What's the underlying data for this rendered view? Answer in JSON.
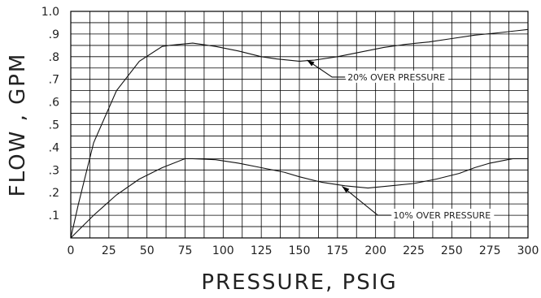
{
  "chart_data": {
    "type": "line",
    "xlabel": "PRESSURE, PSIG",
    "ylabel": "FLOW , GPM",
    "xlim": [
      0,
      300
    ],
    "ylim": [
      0,
      1.0
    ],
    "x_ticks": [
      0,
      25,
      50,
      75,
      100,
      125,
      150,
      175,
      200,
      225,
      250,
      275,
      300
    ],
    "x_tick_labels": [
      "0",
      "25",
      "50",
      "75",
      "100",
      "125",
      "150",
      "175",
      "200",
      "225",
      "250",
      "275",
      "300"
    ],
    "y_ticks": [
      0.1,
      0.2,
      0.3,
      0.4,
      0.5,
      0.6,
      0.7,
      0.8,
      0.9,
      1.0
    ],
    "y_tick_labels": [
      ".1",
      ".2",
      ".3",
      ".4",
      ".5",
      ".6",
      ".7",
      ".8",
      ".9",
      "1.0"
    ],
    "minor_x_step": 12.5,
    "minor_y_step": 0.05,
    "grid": true,
    "reference_line_y": 0.85,
    "series": [
      {
        "name": "20% OVER PRESSURE",
        "x": [
          0,
          5,
          15,
          30,
          45,
          60,
          65,
          80,
          95,
          110,
          125,
          135,
          150,
          160,
          175,
          190,
          205,
          220,
          235,
          250,
          265,
          280,
          300
        ],
        "y": [
          0,
          0.15,
          0.42,
          0.65,
          0.78,
          0.845,
          0.85,
          0.86,
          0.845,
          0.825,
          0.8,
          0.79,
          0.78,
          0.785,
          0.8,
          0.82,
          0.84,
          0.855,
          0.865,
          0.88,
          0.895,
          0.905,
          0.92
        ]
      },
      {
        "name": "10% OVER PRESSURE",
        "x": [
          0,
          15,
          30,
          45,
          60,
          75,
          80,
          95,
          110,
          125,
          140,
          150,
          165,
          180,
          195,
          210,
          225,
          240,
          255,
          265,
          275,
          290,
          300
        ],
        "y": [
          0,
          0.1,
          0.19,
          0.26,
          0.31,
          0.35,
          0.35,
          0.345,
          0.33,
          0.31,
          0.29,
          0.27,
          0.245,
          0.23,
          0.22,
          0.23,
          0.24,
          0.26,
          0.285,
          0.31,
          0.33,
          0.35,
          0.35
        ]
      }
    ],
    "annotations": [
      {
        "text": "20% OVER PRESSURE",
        "target_x": 155,
        "target_y": 0.785,
        "label_x": 180,
        "label_y": 0.71
      },
      {
        "text": "10% OVER PRESSURE",
        "target_x": 178,
        "target_y": 0.228,
        "label_x": 210,
        "label_y": 0.1
      }
    ]
  }
}
